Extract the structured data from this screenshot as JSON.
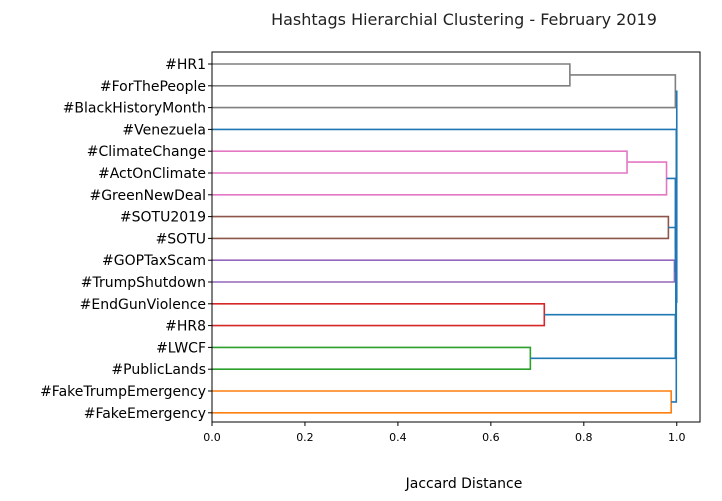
{
  "chart_data": {
    "type": "dendrogram",
    "title": "Hashtags Hierarchial Clustering - February 2019",
    "xlabel": "Jaccard Distance",
    "ylabel": "",
    "xlim": [
      0.0,
      1.05
    ],
    "xticks": [
      "0.0",
      "0.2",
      "0.4",
      "0.6",
      "0.8",
      "1.0"
    ],
    "grid": false,
    "leaves": [
      "#HR1",
      "#ForThePeople",
      "#BlackHistoryMonth",
      "#Venezuela",
      "#ClimateChange",
      "#ActOnClimate",
      "#GreenNewDeal",
      "#SOTU2019",
      "#SOTU",
      "#GOPTaxScam",
      "#TrumpShutdown",
      "#EndGunViolence",
      "#HR8",
      "#LWCF",
      "#PublicLands",
      "#FakeTrumpEmergency",
      "#FakeEmergency"
    ],
    "colors": {
      "gray": "#7f7f7f",
      "blue": "#1f77b4",
      "pink": "#e377c2",
      "brown": "#8c564b",
      "purple": "#9467bd",
      "red": "#d62728",
      "green": "#2ca02c",
      "orange": "#ff7f0e"
    },
    "merges": [
      {
        "id": "c1",
        "children": [
          "#HR1",
          "#ForThePeople"
        ],
        "distance": 0.77,
        "color": "gray"
      },
      {
        "id": "c2",
        "children": [
          "c1",
          "#BlackHistoryMonth"
        ],
        "distance": 0.997,
        "color": "gray"
      },
      {
        "id": "c3",
        "children": [
          "#ClimateChange",
          "#ActOnClimate"
        ],
        "distance": 0.893,
        "color": "pink"
      },
      {
        "id": "c4",
        "children": [
          "c3",
          "#GreenNewDeal"
        ],
        "distance": 0.978,
        "color": "pink"
      },
      {
        "id": "c5",
        "children": [
          "#SOTU2019",
          "#SOTU"
        ],
        "distance": 0.982,
        "color": "brown"
      },
      {
        "id": "c6",
        "children": [
          "#GOPTaxScam",
          "#TrumpShutdown"
        ],
        "distance": 0.995,
        "color": "purple"
      },
      {
        "id": "c7",
        "children": [
          "#EndGunViolence",
          "#HR8"
        ],
        "distance": 0.715,
        "color": "red"
      },
      {
        "id": "c8",
        "children": [
          "#LWCF",
          "#PublicLands"
        ],
        "distance": 0.685,
        "color": "green"
      },
      {
        "id": "c9",
        "children": [
          "#FakeTrumpEmergency",
          "#FakeEmergency"
        ],
        "distance": 0.988,
        "color": "orange"
      },
      {
        "id": "c10",
        "children": [
          "c5",
          "c6"
        ],
        "distance": 0.997,
        "color": "blue"
      },
      {
        "id": "c11",
        "children": [
          "c4",
          "c10"
        ],
        "distance": 0.997,
        "color": "blue"
      },
      {
        "id": "c12",
        "children": [
          "c7",
          "c8"
        ],
        "distance": 0.997,
        "color": "blue"
      },
      {
        "id": "c13",
        "children": [
          "c11",
          "c12"
        ],
        "distance": 0.998,
        "color": "blue"
      },
      {
        "id": "c14",
        "children": [
          "#Venezuela",
          "c13"
        ],
        "distance": 0.999,
        "color": "blue"
      },
      {
        "id": "c15",
        "children": [
          "c14",
          "c9"
        ],
        "distance": 0.999,
        "color": "blue"
      },
      {
        "id": "c16",
        "children": [
          "c2",
          "c15"
        ],
        "distance": 1.0,
        "color": "blue"
      }
    ]
  }
}
